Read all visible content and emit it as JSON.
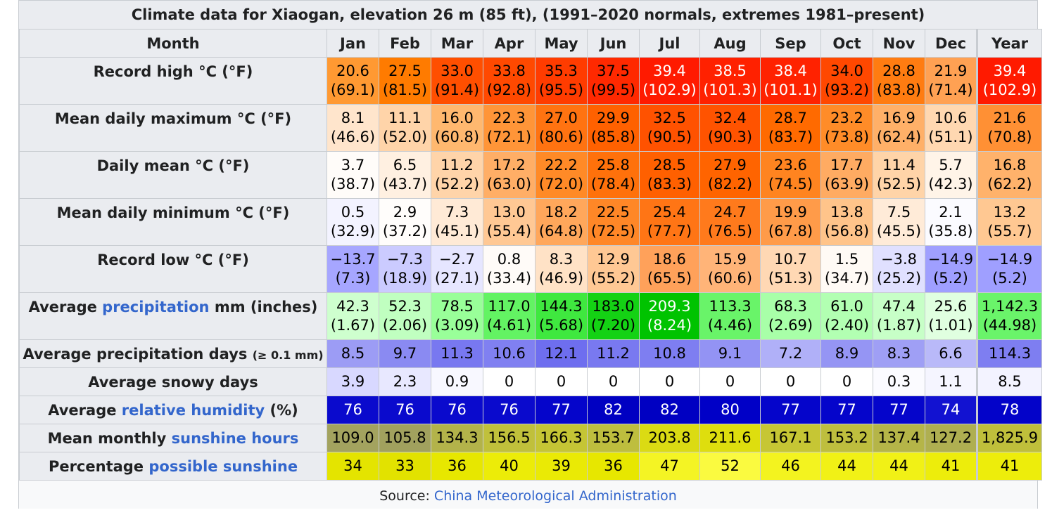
{
  "title": "Climate data for Xiaogan, elevation 26 m (85 ft), (1991–2020 normals, extremes 1981–present)",
  "header_label": "Month",
  "columns": [
    "Jan",
    "Feb",
    "Mar",
    "Apr",
    "May",
    "Jun",
    "Jul",
    "Aug",
    "Sep",
    "Oct",
    "Nov",
    "Dec",
    "Year"
  ],
  "rows": [
    {
      "key": "record-high",
      "label_pre": "Record high °C (°F)",
      "label_link": "",
      "label_post": "",
      "label_small": "",
      "values": [
        "20.6",
        "27.5",
        "33.0",
        "33.8",
        "35.3",
        "37.5",
        "39.4",
        "38.5",
        "38.4",
        "34.0",
        "28.8",
        "21.9",
        "39.4"
      ],
      "sub": [
        "(69.1)",
        "(81.5)",
        "(91.4)",
        "(92.8)",
        "(95.5)",
        "(99.5)",
        "(102.9)",
        "(101.3)",
        "(101.1)",
        "(93.2)",
        "(83.8)",
        "(71.4)",
        "(102.9)"
      ],
      "bg": [
        "#ff9932",
        "#ff7b00",
        "#ff4f00",
        "#ff4900",
        "#ff3c00",
        "#ff2900",
        "#ff1a00",
        "#ff2100",
        "#ff2200",
        "#ff4800",
        "#ff7c11",
        "#ffa153",
        "#ff1a00"
      ],
      "fg": [
        "#000000",
        "#000000",
        "#000000",
        "#000000",
        "#000000",
        "#000000",
        "#ffffff",
        "#ffffff",
        "#ffffff",
        "#000000",
        "#000000",
        "#000000",
        "#ffffff"
      ]
    },
    {
      "key": "mean-max",
      "label_pre": "Mean daily maximum °C (°F)",
      "label_link": "",
      "label_post": "",
      "label_small": "",
      "values": [
        "8.1",
        "11.1",
        "16.0",
        "22.3",
        "27.0",
        "29.9",
        "32.5",
        "32.4",
        "28.7",
        "23.2",
        "16.9",
        "10.6",
        "21.6"
      ],
      "sub": [
        "(46.6)",
        "(52.0)",
        "(60.8)",
        "(72.1)",
        "(80.6)",
        "(85.8)",
        "(90.5)",
        "(90.3)",
        "(83.7)",
        "(73.8)",
        "(62.4)",
        "(51.1)",
        "(70.8)"
      ],
      "bg": [
        "#ffe5cc",
        "#ffd4a9",
        "#ffb86f",
        "#ff9538",
        "#ff7311",
        "#ff6100",
        "#ff5200",
        "#ff5300",
        "#ff6a00",
        "#ff8c28",
        "#ffb068",
        "#ffd8b1",
        "#ff9034"
      ],
      "fg": [
        "#000000",
        "#000000",
        "#000000",
        "#000000",
        "#000000",
        "#000000",
        "#000000",
        "#000000",
        "#000000",
        "#000000",
        "#000000",
        "#000000",
        "#000000"
      ]
    },
    {
      "key": "daily-mean",
      "label_pre": "Daily mean °C (°F)",
      "label_link": "",
      "label_post": "",
      "label_small": "",
      "values": [
        "3.7",
        "6.5",
        "11.2",
        "17.2",
        "22.2",
        "25.8",
        "28.5",
        "27.9",
        "23.6",
        "17.7",
        "11.4",
        "5.7",
        "16.8"
      ],
      "sub": [
        "(38.7)",
        "(43.7)",
        "(52.2)",
        "(63.0)",
        "(72.0)",
        "(78.4)",
        "(83.3)",
        "(82.2)",
        "(74.5)",
        "(63.9)",
        "(52.5)",
        "(42.3)",
        "(62.2)"
      ],
      "bg": [
        "#fffcf9",
        "#fff0e1",
        "#ffd4a9",
        "#ffae66",
        "#ff8a27",
        "#ff710b",
        "#ff6000",
        "#ff6400",
        "#ff8420",
        "#ffab62",
        "#ffd4a8",
        "#fff4e8",
        "#ffb26b"
      ],
      "fg": [
        "#000000",
        "#000000",
        "#000000",
        "#000000",
        "#000000",
        "#000000",
        "#000000",
        "#000000",
        "#000000",
        "#000000",
        "#000000",
        "#000000",
        "#000000"
      ]
    },
    {
      "key": "mean-min",
      "label_pre": "Mean daily minimum °C (°F)",
      "label_link": "",
      "label_post": "",
      "label_small": "",
      "values": [
        "0.5",
        "2.9",
        "7.3",
        "13.0",
        "18.2",
        "22.5",
        "25.4",
        "24.7",
        "19.9",
        "13.8",
        "7.5",
        "2.1",
        "13.2"
      ],
      "sub": [
        "(32.9)",
        "(37.2)",
        "(45.1)",
        "(55.4)",
        "(64.8)",
        "(72.5)",
        "(77.7)",
        "(76.5)",
        "(67.8)",
        "(56.8)",
        "(45.5)",
        "(35.8)",
        "(55.7)"
      ],
      "bg": [
        "#f3f3ff",
        "#fffdfb",
        "#ffead6",
        "#ffc894",
        "#ffa75b",
        "#ff8727",
        "#ff7515",
        "#ff7a1c",
        "#ff9b49",
        "#ffc48a",
        "#ffebd8",
        "#fbfbff",
        "#ffc892"
      ],
      "fg": [
        "#000000",
        "#000000",
        "#000000",
        "#000000",
        "#000000",
        "#000000",
        "#000000",
        "#000000",
        "#000000",
        "#000000",
        "#000000",
        "#000000",
        "#000000"
      ]
    },
    {
      "key": "record-low",
      "label_pre": "Record low °C (°F)",
      "label_link": "",
      "label_post": "",
      "label_small": "",
      "values": [
        "−13.7",
        "−7.3",
        "−2.7",
        "0.8",
        "8.3",
        "12.9",
        "18.6",
        "15.9",
        "10.7",
        "1.5",
        "−3.8",
        "−14.9",
        "−14.9"
      ],
      "sub": [
        "(7.3)",
        "(18.9)",
        "(27.1)",
        "(33.4)",
        "(46.9)",
        "(55.2)",
        "(65.5)",
        "(60.6)",
        "(51.3)",
        "(34.7)",
        "(25.2)",
        "(5.2)",
        "(5.2)"
      ],
      "bg": [
        "#a6a6ff",
        "#cbcbff",
        "#e6e6ff",
        "#fffbf8",
        "#ffe2c6",
        "#ffc894",
        "#ffa15a",
        "#ffb478",
        "#ffd8b4",
        "#fffaf5",
        "#e0e0ff",
        "#9f9fff",
        "#9f9fff"
      ],
      "fg": [
        "#000000",
        "#000000",
        "#000000",
        "#000000",
        "#000000",
        "#000000",
        "#000000",
        "#000000",
        "#000000",
        "#000000",
        "#000000",
        "#000000",
        "#000000"
      ]
    },
    {
      "key": "precipitation",
      "label_pre": "Average ",
      "label_link": "precipitation",
      "label_post": " mm (inches)",
      "label_small": "",
      "values": [
        "42.3",
        "52.3",
        "78.5",
        "117.0",
        "144.3",
        "183.0",
        "209.3",
        "113.3",
        "68.3",
        "61.0",
        "47.4",
        "25.6",
        "1,142.3"
      ],
      "sub": [
        "(1.67)",
        "(2.06)",
        "(3.09)",
        "(4.61)",
        "(5.68)",
        "(7.20)",
        "(8.24)",
        "(4.46)",
        "(2.69)",
        "(2.40)",
        "(1.87)",
        "(1.01)",
        "(44.98)"
      ],
      "bg": [
        "#ceffce",
        "#c0ffc0",
        "#99ff99",
        "#63f363",
        "#3fe83f",
        "#14d214",
        "#00c300",
        "#69f469",
        "#a8ffa8",
        "#b2ffb2",
        "#c7ffc7",
        "#e0ffe0",
        "#6af46a"
      ],
      "fg": [
        "#000000",
        "#000000",
        "#000000",
        "#000000",
        "#000000",
        "#000000",
        "#ffffff",
        "#000000",
        "#000000",
        "#000000",
        "#000000",
        "#000000",
        "#000000"
      ]
    },
    {
      "key": "precip-days",
      "label_pre": "Average precipitation days ",
      "label_link": "",
      "label_post": "",
      "label_small": "(≥ 0.1 mm)",
      "values": [
        "8.5",
        "9.7",
        "11.3",
        "10.6",
        "12.1",
        "11.2",
        "10.8",
        "9.1",
        "7.2",
        "8.9",
        "8.3",
        "6.6",
        "114.3"
      ],
      "sub": [],
      "bg": [
        "#9c9cf5",
        "#8a8af2",
        "#7878f0",
        "#8080f1",
        "#6e6eef",
        "#7979f0",
        "#7e7ef1",
        "#9393f4",
        "#b0b0f8",
        "#9595f4",
        "#9f9ff5",
        "#b9b9f9",
        "#7e7ef1"
      ],
      "fg": [
        "#000000",
        "#000000",
        "#000000",
        "#000000",
        "#000000",
        "#000000",
        "#000000",
        "#000000",
        "#000000",
        "#000000",
        "#000000",
        "#000000",
        "#000000"
      ]
    },
    {
      "key": "snowy-days",
      "label_pre": "Average snowy days",
      "label_link": "",
      "label_post": "",
      "label_small": "",
      "values": [
        "3.9",
        "2.3",
        "0.9",
        "0",
        "0",
        "0",
        "0",
        "0",
        "0",
        "0",
        "0.3",
        "1.1",
        "8.5"
      ],
      "sub": [],
      "bg": [
        "#d8d8ff",
        "#e8e8ff",
        "#f8f8ff",
        "#ffffff",
        "#ffffff",
        "#ffffff",
        "#ffffff",
        "#ffffff",
        "#ffffff",
        "#ffffff",
        "#fbfbff",
        "#f5f5ff",
        "#f3f3ff"
      ],
      "fg": [
        "#000000",
        "#000000",
        "#000000",
        "#000000",
        "#000000",
        "#000000",
        "#000000",
        "#000000",
        "#000000",
        "#000000",
        "#000000",
        "#000000",
        "#000000"
      ]
    },
    {
      "key": "humidity",
      "label_pre": "Average ",
      "label_link": "relative humidity",
      "label_post": " (%)",
      "label_small": "",
      "values": [
        "76",
        "76",
        "76",
        "76",
        "77",
        "82",
        "82",
        "80",
        "77",
        "77",
        "77",
        "74",
        "78"
      ],
      "sub": [],
      "bg": [
        "#0a0acd",
        "#0a0acd",
        "#0a0acd",
        "#0a0acd",
        "#0505cb",
        "#0000c2",
        "#0000c2",
        "#0000c7",
        "#0505cb",
        "#0505cb",
        "#0505cb",
        "#1212d1",
        "#0303c9"
      ],
      "fg": [
        "#ffffff",
        "#ffffff",
        "#ffffff",
        "#ffffff",
        "#ffffff",
        "#ffffff",
        "#ffffff",
        "#ffffff",
        "#ffffff",
        "#ffffff",
        "#ffffff",
        "#ffffff",
        "#ffffff"
      ]
    },
    {
      "key": "sunshine-hours",
      "label_pre": "Mean monthly ",
      "label_link": "sunshine hours",
      "label_post": "",
      "label_small": "",
      "values": [
        "109.0",
        "105.8",
        "134.3",
        "156.5",
        "166.3",
        "153.7",
        "203.8",
        "211.6",
        "167.1",
        "153.2",
        "137.4",
        "127.2",
        "1,825.9"
      ],
      "sub": [],
      "bg": [
        "#a3a35f",
        "#a1a15e",
        "#b3b34a",
        "#c0c03b",
        "#c5c535",
        "#bebe3e",
        "#dbdb13",
        "#dede0e",
        "#c6c634",
        "#bebe3e",
        "#b5b548",
        "#afaf51",
        "#bfbf3b"
      ],
      "fg": [
        "#000000",
        "#000000",
        "#000000",
        "#000000",
        "#000000",
        "#000000",
        "#000000",
        "#000000",
        "#000000",
        "#000000",
        "#000000",
        "#000000",
        "#000000"
      ]
    },
    {
      "key": "possible-sunshine",
      "label_pre": "Percentage ",
      "label_link": "possible sunshine",
      "label_post": "",
      "label_small": "",
      "values": [
        "34",
        "33",
        "36",
        "40",
        "39",
        "36",
        "47",
        "52",
        "46",
        "44",
        "44",
        "41",
        "41"
      ],
      "sub": [],
      "bg": [
        "#e4e400",
        "#e2e200",
        "#e7e700",
        "#ecec08",
        "#eaea05",
        "#e7e700",
        "#f4f424",
        "#fafa40",
        "#f3f31f",
        "#f1f116",
        "#f1f116",
        "#eded0b",
        "#eded0b"
      ],
      "fg": [
        "#000000",
        "#000000",
        "#000000",
        "#000000",
        "#000000",
        "#000000",
        "#000000",
        "#000000",
        "#000000",
        "#000000",
        "#000000",
        "#000000",
        "#000000"
      ]
    }
  ],
  "source": {
    "label": "Source: ",
    "link": "China Meteorological Administration"
  }
}
